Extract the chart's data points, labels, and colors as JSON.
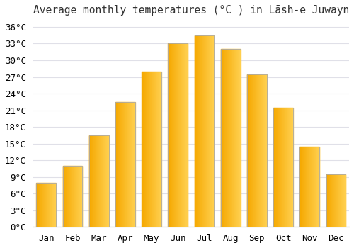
{
  "title": "Average monthly temperatures (°C ) in Lāsh-e Juwayn",
  "months": [
    "Jan",
    "Feb",
    "Mar",
    "Apr",
    "May",
    "Jun",
    "Jul",
    "Aug",
    "Sep",
    "Oct",
    "Nov",
    "Dec"
  ],
  "values": [
    8,
    11,
    16.5,
    22.5,
    28,
    33,
    34.5,
    32,
    27.5,
    21.5,
    14.5,
    9.5
  ],
  "bar_color_left": "#F5A800",
  "bar_color_right": "#FFD050",
  "bar_edge_color": "#AAAAAA",
  "background_color": "#ffffff",
  "plot_bg_color": "#ffffff",
  "grid_color": "#e0e0e8",
  "ylim": [
    0,
    37
  ],
  "yticks": [
    0,
    3,
    6,
    9,
    12,
    15,
    18,
    21,
    24,
    27,
    30,
    33,
    36
  ],
  "title_fontsize": 10.5,
  "tick_fontsize": 9,
  "bar_width": 0.75
}
